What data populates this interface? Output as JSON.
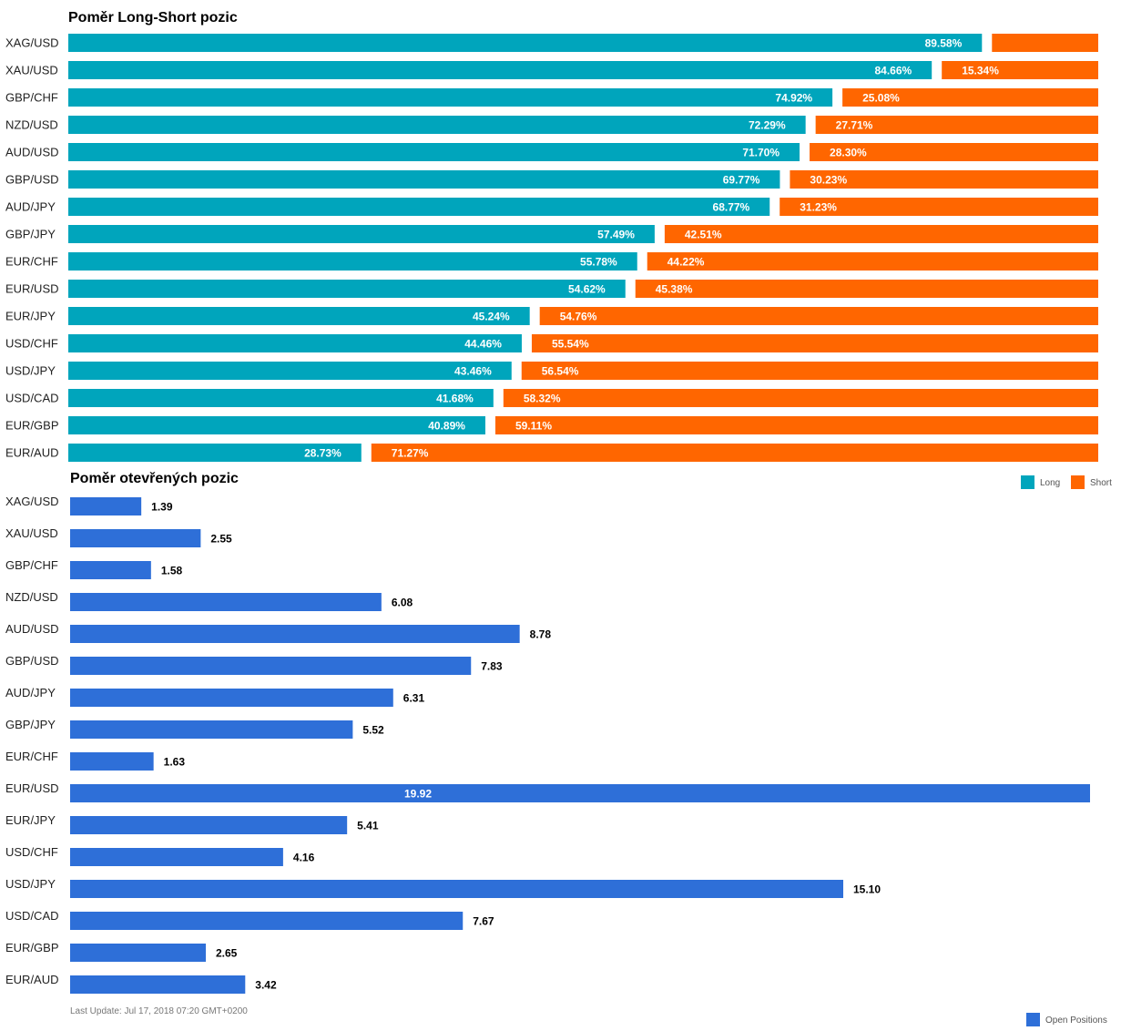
{
  "colors": {
    "long": "#00a5bc",
    "short": "#ff6600",
    "open": "#2e6fd8"
  },
  "footer": "Last Update: Jul 17, 2018 07:20 GMT+0200",
  "chart_data": [
    {
      "type": "bar",
      "title": "Poměr Long-Short pozic",
      "categories": [
        "XAG/USD",
        "XAU/USD",
        "GBP/CHF",
        "NZD/USD",
        "AUD/USD",
        "GBP/USD",
        "AUD/JPY",
        "GBP/JPY",
        "EUR/CHF",
        "EUR/USD",
        "EUR/JPY",
        "USD/CHF",
        "USD/JPY",
        "USD/CAD",
        "EUR/GBP",
        "EUR/AUD"
      ],
      "series": [
        {
          "name": "Long",
          "values": [
            89.58,
            84.66,
            74.92,
            72.29,
            71.7,
            69.77,
            68.77,
            57.49,
            55.78,
            54.62,
            45.24,
            44.46,
            43.46,
            41.68,
            40.89,
            28.73
          ],
          "labels": [
            "89.58%",
            "84.66%",
            "74.92%",
            "72.29%",
            "71.70%",
            "69.77%",
            "68.77%",
            "57.49%",
            "55.78%",
            "54.62%",
            "45.24%",
            "44.46%",
            "43.46%",
            "41.68%",
            "40.89%",
            "28.73%"
          ]
        },
        {
          "name": "Short",
          "values": [
            10.42,
            15.34,
            25.08,
            27.71,
            28.3,
            30.23,
            31.23,
            42.51,
            44.22,
            45.38,
            54.76,
            55.54,
            56.54,
            58.32,
            59.11,
            71.27
          ],
          "labels": [
            "",
            "15.34%",
            "25.08%",
            "27.71%",
            "28.30%",
            "30.23%",
            "31.23%",
            "42.51%",
            "44.22%",
            "45.38%",
            "54.76%",
            "55.54%",
            "56.54%",
            "58.32%",
            "59.11%",
            "71.27%"
          ]
        }
      ],
      "stacked": true,
      "xlim": [
        0,
        100
      ],
      "legend": "top-right"
    },
    {
      "type": "bar",
      "title": "Poměr otevřených pozic",
      "categories": [
        "XAG/USD",
        "XAU/USD",
        "GBP/CHF",
        "NZD/USD",
        "AUD/USD",
        "GBP/USD",
        "AUD/JPY",
        "GBP/JPY",
        "EUR/CHF",
        "EUR/USD",
        "EUR/JPY",
        "USD/CHF",
        "USD/JPY",
        "USD/CAD",
        "EUR/GBP",
        "EUR/AUD"
      ],
      "series": [
        {
          "name": "Open Positions",
          "values": [
            1.39,
            2.55,
            1.58,
            6.08,
            8.78,
            7.83,
            6.31,
            5.52,
            1.63,
            19.92,
            5.41,
            4.16,
            15.1,
            7.67,
            2.65,
            3.42
          ],
          "labels": [
            "1.39",
            "2.55",
            "1.58",
            "6.08",
            "8.78",
            "7.83",
            "6.31",
            "5.52",
            "1.63",
            "19.92",
            "5.41",
            "4.16",
            "15.10",
            "7.67",
            "2.65",
            "3.42"
          ]
        }
      ],
      "xlim": [
        0,
        19.92
      ],
      "legend": "bottom-right"
    }
  ]
}
